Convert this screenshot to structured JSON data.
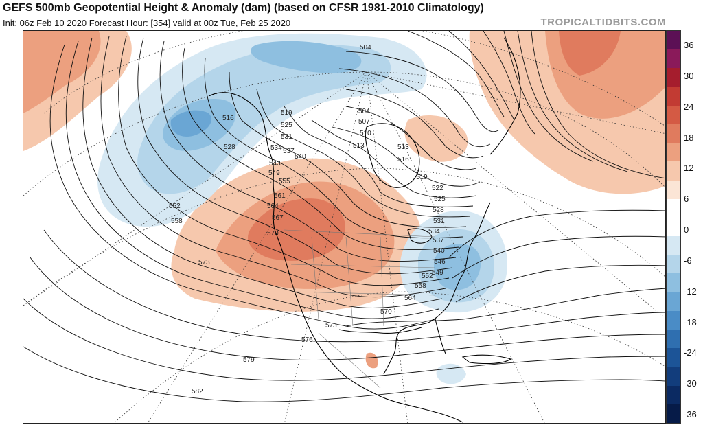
{
  "header": {
    "title": "GEFS 500mb Geopotential Height & Anomaly (dam) (based on CFSR 1981-2010 Climatology)",
    "subtitle": "Init: 06z Feb 10 2020   Forecast Hour: [354]   valid at 00z Tue, Feb 25 2020",
    "watermark": "TROPICALTIDBITS.COM"
  },
  "colorbar": {
    "ticks": [
      "36",
      "30",
      "24",
      "18",
      "12",
      "6",
      "0",
      "-6",
      "-12",
      "-18",
      "-24",
      "-30",
      "-36"
    ],
    "colors": [
      "#5c1055",
      "#8a1a5a",
      "#a51d2d",
      "#c23b33",
      "#d45a44",
      "#e07b5e",
      "#eca07f",
      "#f6c8ad",
      "#fbe5d6",
      "#ffffff",
      "#ffffff",
      "#d6e8f3",
      "#b4d5ea",
      "#8ebfe0",
      "#6aa6d4",
      "#4a8cc6",
      "#2f6fb0",
      "#1c5497",
      "#123d7c",
      "#0b2a62",
      "#061b48"
    ]
  },
  "contour_labels": [
    "504",
    "504",
    "507",
    "510",
    "513",
    "513",
    "516",
    "516",
    "519",
    "519",
    "522",
    "525",
    "525",
    "528",
    "528",
    "531",
    "531",
    "534",
    "534",
    "537",
    "537",
    "540",
    "540",
    "543",
    "546",
    "549",
    "549",
    "552",
    "552",
    "555",
    "558",
    "558",
    "561",
    "564",
    "564",
    "567",
    "570",
    "570",
    "573",
    "573",
    "576",
    "579",
    "582"
  ]
}
